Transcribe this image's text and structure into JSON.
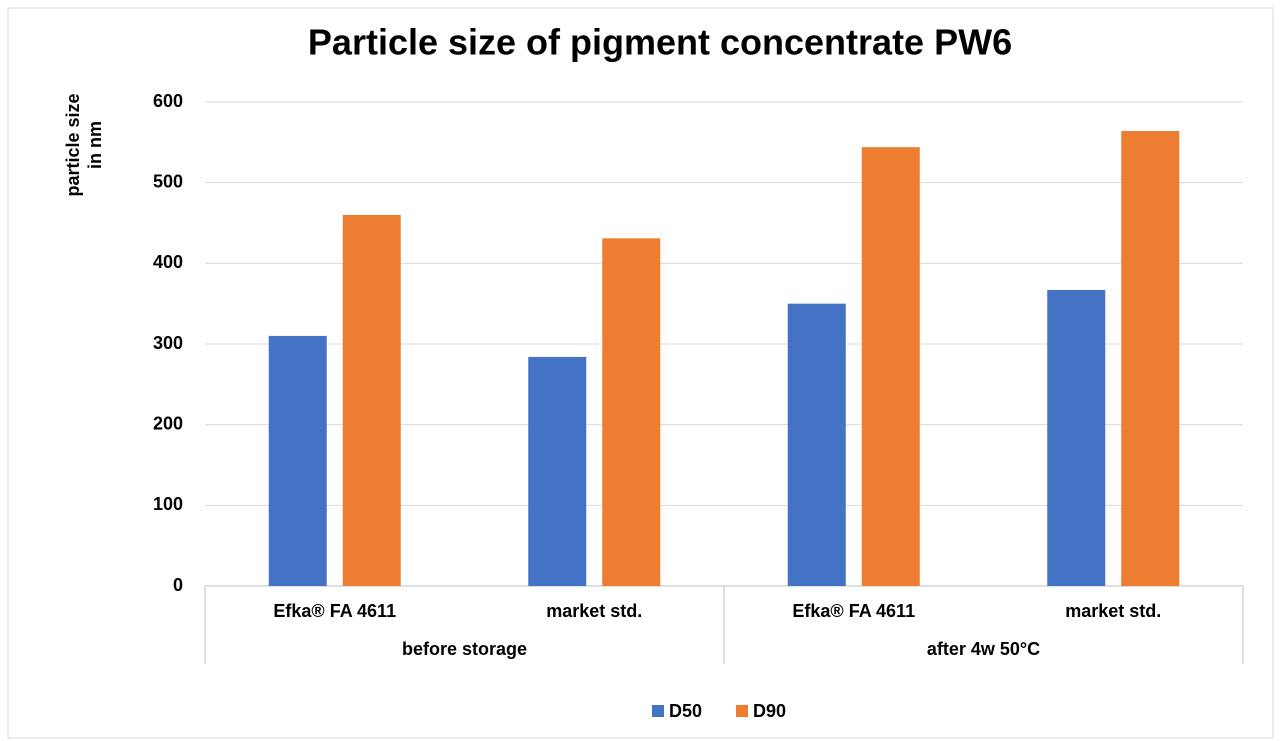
{
  "chart_data": {
    "type": "bar",
    "title": "Particle size of pigment concentrate PW6",
    "ylabel": [
      "particle size",
      "in nm"
    ],
    "categories": [
      "Efka® FA 4611",
      "market std.",
      "Efka® FA 4611",
      "market std."
    ],
    "groups": [
      {
        "label": "before storage",
        "span": 2
      },
      {
        "label": "after 4w 50°C",
        "span": 2
      }
    ],
    "series": [
      {
        "name": "D50",
        "color": "#4472c4",
        "values": [
          310,
          284,
          350,
          367
        ]
      },
      {
        "name": "D90",
        "color": "#ed7d31",
        "values": [
          460,
          431,
          544,
          564
        ]
      }
    ],
    "ylim": [
      0,
      600
    ],
    "yticks": [
      0,
      100,
      200,
      300,
      400,
      500,
      600
    ],
    "grid": true,
    "legend": "bottom"
  }
}
